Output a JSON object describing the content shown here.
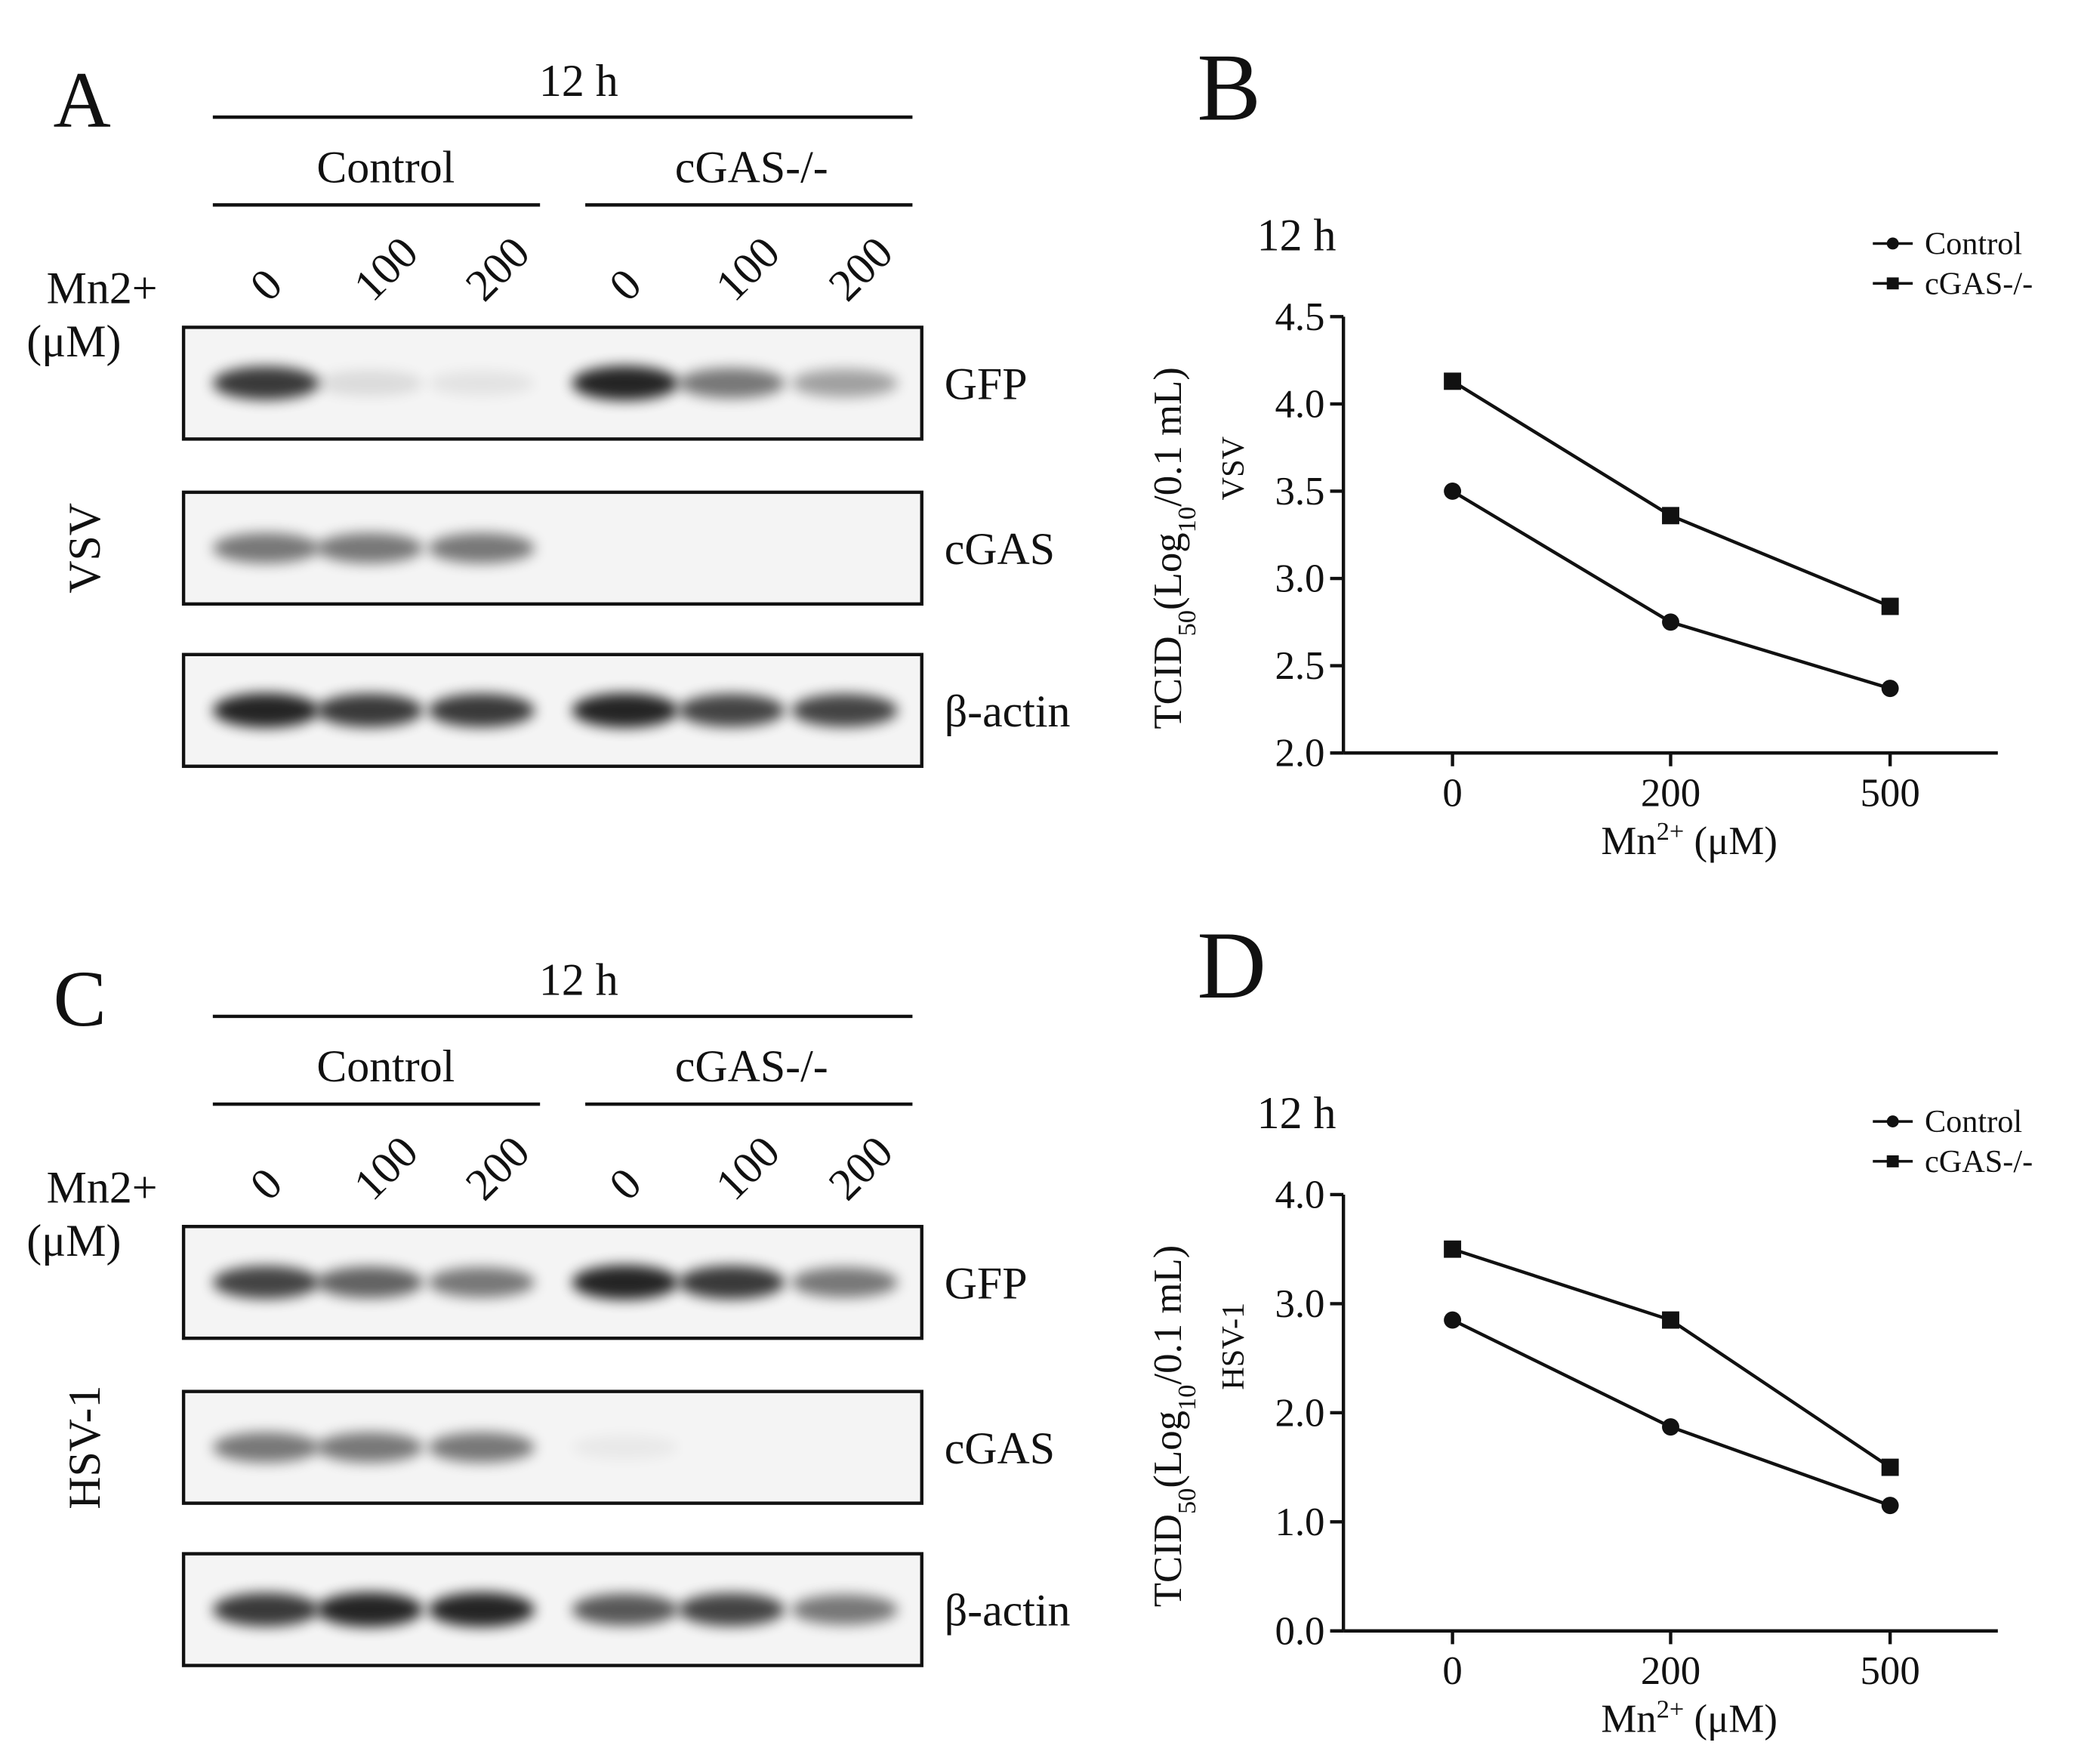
{
  "blots": [
    {
      "panel_label": "A",
      "time": "12 h",
      "groups": [
        "Control",
        "cGAS-/-"
      ],
      "dose_label": [
        "Mn2+",
        "(μM)"
      ],
      "lanes": [
        "0",
        "100",
        "200",
        "0",
        "100",
        "200"
      ],
      "virus": "VSV",
      "bands": [
        "GFP",
        "cGAS",
        "β-actin"
      ]
    },
    {
      "panel_label": "C",
      "time": "12 h",
      "groups": [
        "Control",
        "cGAS-/-"
      ],
      "dose_label": [
        "Mn2+",
        "(μM)"
      ],
      "lanes": [
        "0",
        "100",
        "200",
        "0",
        "100",
        "200"
      ],
      "virus": "HSV-1",
      "bands": [
        "GFP",
        "cGAS",
        "β-actin"
      ]
    }
  ],
  "chart_data": [
    {
      "type": "line",
      "panel_label": "B",
      "title": "12 h",
      "y_label": [
        "TCID",
        "50",
        "(Log",
        "10",
        "/0.1 mL)"
      ],
      "y_label_2": "VSV",
      "x_label": [
        "Mn",
        "2+",
        " (μM)"
      ],
      "categories": [
        "0",
        "200",
        "500"
      ],
      "series": [
        {
          "name": "Control",
          "color": "#111111",
          "marker": "circle",
          "values": [
            3.5,
            2.75,
            2.37
          ]
        },
        {
          "name": "cGAS-/-",
          "color": "#111111",
          "marker": "square",
          "values": [
            4.13,
            3.36,
            2.84
          ]
        }
      ],
      "ylim": [
        2.0,
        4.5
      ],
      "yticks": [
        {
          "value": 2,
          "label": "2.0"
        },
        2.5,
        {
          "value": 3,
          "label": "3.0"
        },
        3.5,
        {
          "value": 4,
          "label": "4.0"
        },
        4.5
      ],
      "legend": "upper right"
    },
    {
      "type": "line",
      "panel_label": "D",
      "title": "12 h",
      "y_label": [
        "TCID",
        "50",
        "(Log",
        "10",
        "/0.1 mL)"
      ],
      "y_label_2": "HSV-1",
      "x_label": [
        "Mn",
        "2+",
        " (μM)"
      ],
      "categories": [
        "0",
        "200",
        "500"
      ],
      "series": [
        {
          "name": "Control",
          "color": "#111111",
          "marker": "circle",
          "values": [
            2.85,
            1.87,
            1.15
          ]
        },
        {
          "name": "cGAS-/-",
          "color": "#111111",
          "marker": "square",
          "values": [
            3.5,
            2.85,
            1.5
          ]
        }
      ],
      "ylim": [
        0,
        4
      ],
      "yticks": [
        {
          "value": 0,
          "label": "0.0"
        },
        {
          "value": 1,
          "label": "1.0"
        },
        {
          "value": 2,
          "label": "2.0"
        },
        {
          "value": 3,
          "label": "3.0"
        },
        {
          "value": 4,
          "label": "4.0"
        }
      ],
      "legend": "upper right"
    }
  ]
}
